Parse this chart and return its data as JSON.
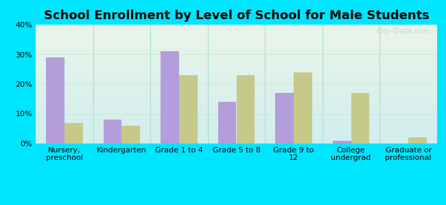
{
  "title": "School Enrollment by Level of School for Male Students",
  "categories": [
    "Nursery,\npreschool",
    "Kindergarten",
    "Grade 1 to 4",
    "Grade 5 to 8",
    "Grade 9 to\n12",
    "College\nundergrad",
    "Graduate or\nprofessional"
  ],
  "hot_springs": [
    29,
    8,
    31,
    14,
    17,
    1,
    0
  ],
  "south_dakota": [
    7,
    6,
    23,
    23,
    24,
    17,
    2
  ],
  "hot_springs_color": "#b39ddb",
  "south_dakota_color": "#c5c98a",
  "background_outer": "#00e5ff",
  "background_inner_top": "#eaf5ea",
  "background_inner_bottom": "#d0eeee",
  "ylim": [
    0,
    40
  ],
  "yticks": [
    0,
    10,
    20,
    30,
    40
  ],
  "title_fontsize": 13,
  "tick_fontsize": 8,
  "legend_fontsize": 9.5,
  "bar_width": 0.32,
  "watermark": "City-Data.com",
  "separator_color": "#aaddcc",
  "grid_color": "#c8e8d8"
}
